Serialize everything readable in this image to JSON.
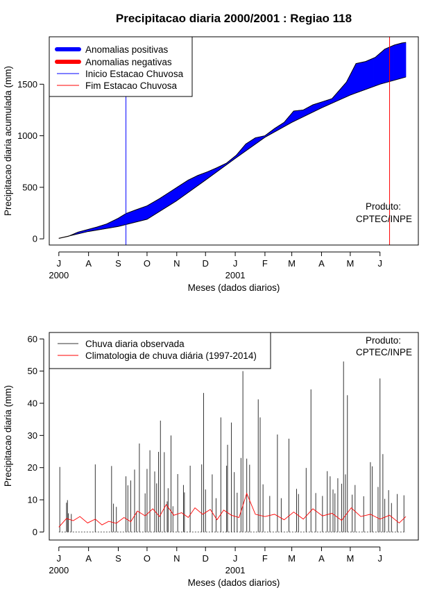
{
  "chart_data": [
    {
      "type": "area",
      "title": "Precipitacao diaria 2000/2001 : Regiao 118",
      "xlabel": "Meses (dados diarios)",
      "ylabel": "Precipitacao diaria acumulada (mm)",
      "ylim": [
        -60,
        1960
      ],
      "yticks": [
        0,
        500,
        1000,
        1500
      ],
      "xlim": [
        -10,
        375
      ],
      "month_ticks": [
        {
          "day": 0,
          "label": "J"
        },
        {
          "day": 31,
          "label": "A"
        },
        {
          "day": 62,
          "label": "S"
        },
        {
          "day": 92,
          "label": "O"
        },
        {
          "day": 123,
          "label": "N"
        },
        {
          "day": 153,
          "label": "D"
        },
        {
          "day": 184,
          "label": "J"
        },
        {
          "day": 215,
          "label": "F"
        },
        {
          "day": 243,
          "label": "M"
        },
        {
          "day": 274,
          "label": "A"
        },
        {
          "day": 304,
          "label": "M"
        },
        {
          "day": 335,
          "label": "J"
        }
      ],
      "year_labels": [
        {
          "day": 0,
          "label": "2000"
        },
        {
          "day": 184,
          "label": "2001"
        }
      ],
      "observed": {
        "x": [
          0,
          10,
          20,
          30,
          40,
          50,
          62,
          70,
          80,
          92,
          105,
          115,
          125,
          135,
          145,
          155,
          165,
          175,
          185,
          195,
          205,
          215,
          225,
          235,
          245,
          255,
          265,
          275,
          285,
          300,
          310,
          320,
          330,
          340,
          350,
          358,
          362
        ],
        "y": [
          5,
          25,
          65,
          90,
          115,
          145,
          200,
          245,
          280,
          320,
          390,
          450,
          510,
          570,
          615,
          650,
          690,
          735,
          810,
          920,
          980,
          1000,
          1070,
          1130,
          1240,
          1250,
          1300,
          1330,
          1360,
          1520,
          1700,
          1720,
          1760,
          1840,
          1880,
          1900,
          1905
        ]
      },
      "climatology": {
        "x": [
          0,
          30,
          62,
          92,
          123,
          153,
          184,
          215,
          243,
          274,
          304,
          335,
          362
        ],
        "y": [
          5,
          70,
          120,
          190,
          370,
          570,
          780,
          985,
          1130,
          1270,
          1395,
          1500,
          1570
        ]
      },
      "rainy_season_start_day": 70,
      "rainy_season_end_day": 345,
      "legend": {
        "position": "top-left",
        "items": [
          {
            "label": "Anomalias positivas",
            "color": "#0000ff",
            "style": "thick"
          },
          {
            "label": "Anomalias negativas",
            "color": "#ff0000",
            "style": "thick"
          },
          {
            "label": "Inicio Estacao Chuvosa",
            "color": "#0000ff",
            "style": "thin"
          },
          {
            "label": "Fim Estacao Chuvosa",
            "color": "#ff0000",
            "style": "thin"
          }
        ]
      },
      "annotation": {
        "line1": "Produto:",
        "line2": "CPTEC/INPE"
      }
    },
    {
      "type": "bar",
      "xlabel": "Meses (dados diarios)",
      "ylabel": "Precipitacao diaria (mm)",
      "ylim": [
        -2.5,
        62
      ],
      "yticks": [
        0,
        10,
        20,
        30,
        40,
        50,
        60
      ],
      "xlim": [
        -10,
        375
      ],
      "month_ticks": [
        {
          "day": 0,
          "label": "J"
        },
        {
          "day": 31,
          "label": "A"
        },
        {
          "day": 62,
          "label": "S"
        },
        {
          "day": 92,
          "label": "O"
        },
        {
          "day": 123,
          "label": "N"
        },
        {
          "day": 153,
          "label": "D"
        },
        {
          "day": 184,
          "label": "J"
        },
        {
          "day": 215,
          "label": "F"
        },
        {
          "day": 243,
          "label": "M"
        },
        {
          "day": 274,
          "label": "A"
        },
        {
          "day": 304,
          "label": "M"
        },
        {
          "day": 335,
          "label": "J"
        }
      ],
      "year_labels": [
        {
          "day": 0,
          "label": "2000"
        },
        {
          "day": 184,
          "label": "2001"
        }
      ],
      "daily_rain": {
        "days": [
          1,
          8,
          9,
          10,
          13,
          38,
          55,
          57,
          60,
          70,
          72,
          75,
          79,
          81,
          84,
          90,
          92,
          95,
          100,
          102,
          104,
          106,
          110,
          113,
          114,
          117,
          119,
          124,
          130,
          131,
          137,
          149,
          151,
          153,
          160,
          164,
          169,
          175,
          176,
          180,
          183,
          186,
          190,
          192,
          196,
          199,
          208,
          210,
          213,
          220,
          228,
          232,
          240,
          248,
          250,
          258,
          263,
          268,
          275,
          280,
          283,
          286,
          288,
          291,
          295,
          297,
          299,
          301,
          306,
          309,
          318,
          325,
          327,
          333,
          335,
          338,
          340,
          344,
          347,
          353,
          360
        ],
        "values": [
          20.2,
          9.1,
          9.9,
          5.8,
          5.6,
          21.0,
          20.5,
          8.8,
          7.8,
          17.3,
          14.5,
          16.0,
          19.4,
          6.3,
          27.5,
          12.0,
          19.6,
          25.4,
          18.8,
          15.1,
          24.9,
          34.6,
          24.8,
          9.5,
          13.6,
          30.0,
          8.0,
          18.0,
          14.6,
          12.3,
          20.6,
          21.0,
          43.2,
          13.2,
          17.9,
          10.5,
          35.6,
          20.6,
          27.1,
          34.0,
          18.6,
          12.2,
          23.0,
          50.0,
          22.8,
          20.9,
          41.2,
          35.6,
          14.8,
          11.2,
          30.3,
          10.5,
          29.0,
          13.4,
          11.8,
          19.9,
          44.3,
          12.1,
          11.2,
          18.9,
          17.3,
          13.2,
          12.0,
          16.7,
          15.0,
          53.0,
          17.9,
          42.5,
          11.6,
          14.6,
          11.1,
          21.7,
          20.4,
          14.0,
          47.7,
          24.2,
          10.3,
          13.0,
          9.0,
          11.8,
          11.4
        ]
      },
      "climatology": {
        "x": [
          0,
          8,
          15,
          22,
          30,
          38,
          45,
          52,
          60,
          68,
          75,
          82,
          90,
          98,
          105,
          112,
          120,
          128,
          135,
          142,
          150,
          158,
          165,
          172,
          180,
          188,
          196,
          205,
          215,
          225,
          235,
          245,
          255,
          265,
          275,
          285,
          295,
          305,
          315,
          325,
          335,
          345,
          355,
          362
        ],
        "y": [
          1.5,
          4.2,
          3.5,
          4.8,
          2.8,
          4.0,
          2.2,
          3.3,
          2.7,
          4.5,
          3.2,
          6.5,
          5.0,
          7.2,
          4.8,
          8.5,
          5.2,
          6.0,
          4.5,
          7.5,
          5.5,
          7.0,
          3.8,
          6.8,
          5.2,
          4.5,
          12.0,
          5.5,
          4.8,
          5.5,
          3.8,
          6.2,
          4.0,
          7.2,
          5.0,
          5.8,
          3.6,
          7.5,
          4.8,
          5.5,
          4.0,
          5.2,
          2.8,
          4.8
        ]
      },
      "legend": {
        "position": "top-left",
        "items": [
          {
            "label": "Chuva diaria observada",
            "color": "#333333",
            "style": "thin"
          },
          {
            "label": "Climatologia de chuva diária (1997-2014)",
            "color": "#ff0000",
            "style": "thin"
          }
        ]
      },
      "annotation": {
        "line1": "Produto:",
        "line2": "CPTEC/INPE"
      }
    }
  ]
}
